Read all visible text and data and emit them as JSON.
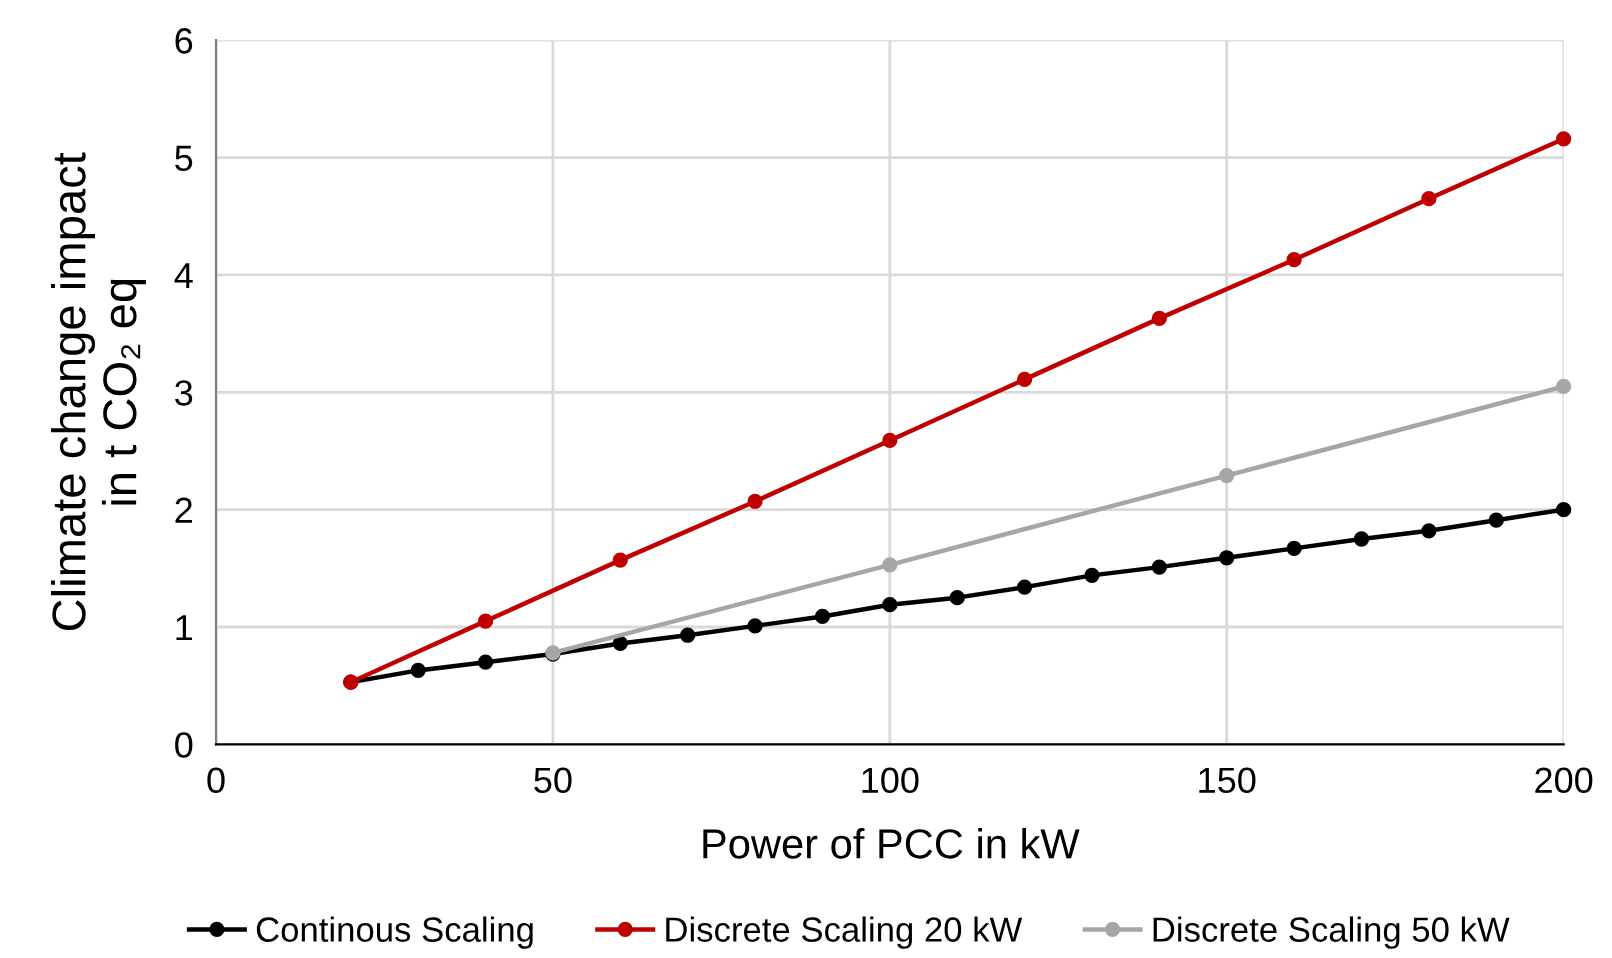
{
  "chart_data": {
    "type": "line",
    "xlabel": "Power of PCC in kW",
    "ylabel": "Climate change impact\nin t CO₂ eq",
    "xlim": [
      0,
      200
    ],
    "xticks": [
      0,
      50,
      100,
      150,
      200
    ],
    "ylim": [
      0,
      6
    ],
    "yticks": [
      0,
      1,
      2,
      3,
      4,
      5,
      6
    ],
    "grid": true,
    "legend": "bottom",
    "marker": "circle",
    "line_style": "solid",
    "series": [
      {
        "name": "Continous Scaling",
        "color": "#000000",
        "x": [
          20,
          30,
          40,
          50,
          60,
          70,
          80,
          90,
          100,
          110,
          120,
          130,
          140,
          150,
          160,
          170,
          180,
          190,
          200
        ],
        "values": [
          0.53,
          0.63,
          0.7,
          0.77,
          0.86,
          0.93,
          1.01,
          1.09,
          1.19,
          1.25,
          1.34,
          1.44,
          1.51,
          1.59,
          1.67,
          1.75,
          1.82,
          1.91,
          2.0
        ]
      },
      {
        "name": "Discrete Scaling 20 kW",
        "color": "#c00000",
        "x": [
          20,
          40,
          60,
          80,
          100,
          120,
          140,
          160,
          180,
          200
        ],
        "values": [
          0.53,
          1.05,
          1.57,
          2.07,
          2.59,
          3.11,
          3.63,
          4.13,
          4.65,
          5.16
        ]
      },
      {
        "name": "Discrete Scaling 50 kW",
        "color": "#a6a6a6",
        "x": [
          50,
          100,
          150,
          200
        ],
        "values": [
          0.78,
          1.53,
          2.29,
          3.05
        ]
      }
    ]
  }
}
